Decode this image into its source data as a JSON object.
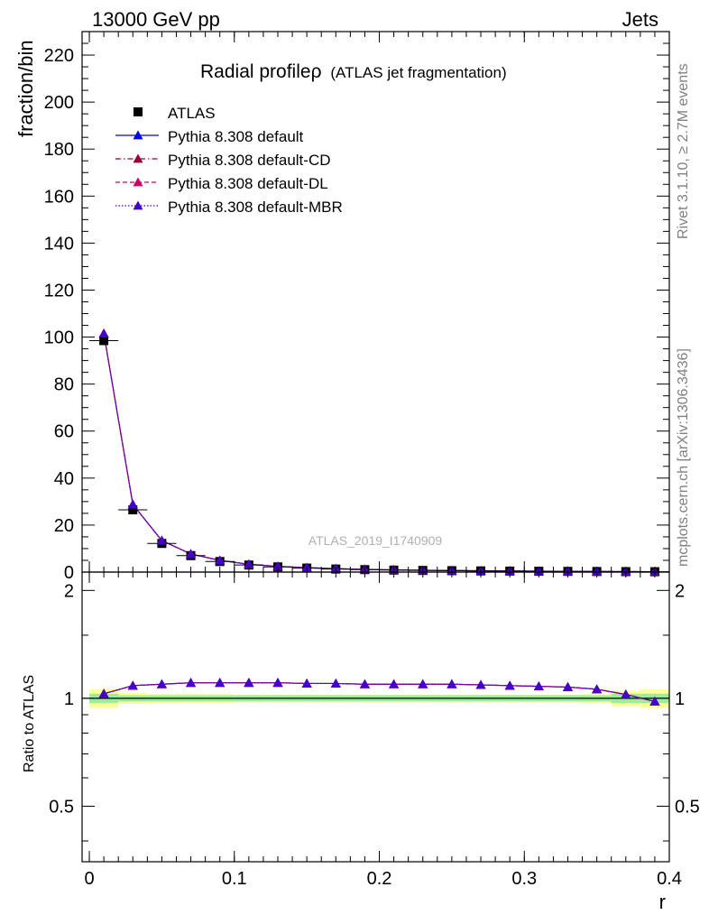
{
  "header": {
    "left": "13000 GeV pp",
    "right": "Jets"
  },
  "side_text": {
    "rivet": "Rivet 3.1.10, ≥ 2.7M events",
    "mcplots": "mcplots.cern.ch [arXiv:1306.3436]"
  },
  "watermark": "ATLAS_2019_I1740909",
  "chart_data": {
    "type": "line",
    "title": "Radial profileρ",
    "subtitle": "(ATLAS jet fragmentation)",
    "xlabel": "r",
    "ylabel": "fraction/bin",
    "ratio_ylabel": "Ratio to ATLAS",
    "xlim": [
      -0.005,
      0.4
    ],
    "ylim": [
      0,
      230
    ],
    "ratio_ylim": [
      0.35,
      2.25
    ],
    "x_ticks": [
      "0",
      "0.1",
      "0.2",
      "0.3",
      "0.4"
    ],
    "y_ticks": [
      "0",
      "20",
      "40",
      "60",
      "80",
      "100",
      "120",
      "140",
      "160",
      "180",
      "200",
      "220"
    ],
    "ratio_ticks": [
      "0.5",
      "1",
      "2"
    ],
    "x": [
      0.01,
      0.03,
      0.05,
      0.07,
      0.09,
      0.11,
      0.13,
      0.15,
      0.17,
      0.19,
      0.21,
      0.23,
      0.25,
      0.27,
      0.29,
      0.31,
      0.33,
      0.35,
      0.37,
      0.39
    ],
    "data": {
      "name": "ATLAS",
      "values": [
        98.5,
        26.5,
        12.2,
        7.0,
        4.5,
        3.0,
        2.2,
        1.7,
        1.3,
        1.05,
        0.85,
        0.7,
        0.6,
        0.5,
        0.42,
        0.35,
        0.3,
        0.25,
        0.2,
        0.16
      ],
      "band_inner": [
        0.03,
        0.02,
        0.02,
        0.02,
        0.02,
        0.02,
        0.02,
        0.02,
        0.02,
        0.02,
        0.02,
        0.02,
        0.02,
        0.02,
        0.02,
        0.02,
        0.02,
        0.02,
        0.03,
        0.03
      ],
      "band_outer": [
        0.06,
        0.035,
        0.03,
        0.03,
        0.03,
        0.025,
        0.025,
        0.025,
        0.025,
        0.025,
        0.025,
        0.025,
        0.025,
        0.025,
        0.025,
        0.025,
        0.025,
        0.03,
        0.05,
        0.06
      ]
    },
    "series": [
      {
        "name": "Pythia 8.308 default",
        "color": "#0000ff",
        "dash": "solid",
        "values": [
          101.5,
          28.8,
          13.4,
          7.7,
          5.0,
          3.3,
          2.42,
          1.87,
          1.43,
          1.15,
          0.93,
          0.77,
          0.66,
          0.55,
          0.46,
          0.38,
          0.32,
          0.26,
          0.205,
          0.157
        ],
        "ratio": [
          1.03,
          1.085,
          1.095,
          1.105,
          1.105,
          1.105,
          1.105,
          1.1,
          1.1,
          1.095,
          1.095,
          1.095,
          1.095,
          1.09,
          1.085,
          1.08,
          1.075,
          1.06,
          1.025,
          0.98
        ]
      },
      {
        "name": "Pythia 8.308 default-CD",
        "color": "#990033",
        "dash": "dashdot",
        "values": [
          101.5,
          28.8,
          13.4,
          7.7,
          5.0,
          3.3,
          2.42,
          1.87,
          1.43,
          1.15,
          0.93,
          0.77,
          0.66,
          0.55,
          0.46,
          0.38,
          0.32,
          0.26,
          0.205,
          0.157
        ],
        "ratio": [
          1.03,
          1.085,
          1.095,
          1.105,
          1.105,
          1.105,
          1.105,
          1.1,
          1.1,
          1.095,
          1.095,
          1.095,
          1.095,
          1.09,
          1.085,
          1.08,
          1.075,
          1.06,
          1.025,
          0.98
        ]
      },
      {
        "name": "Pythia 8.308 default-DL",
        "color": "#cc0066",
        "dash": "dashed",
        "values": [
          101.5,
          28.8,
          13.4,
          7.7,
          5.0,
          3.3,
          2.42,
          1.87,
          1.43,
          1.15,
          0.93,
          0.77,
          0.66,
          0.55,
          0.46,
          0.38,
          0.32,
          0.26,
          0.205,
          0.157
        ],
        "ratio": [
          1.03,
          1.085,
          1.095,
          1.105,
          1.105,
          1.105,
          1.105,
          1.1,
          1.1,
          1.095,
          1.095,
          1.095,
          1.095,
          1.09,
          1.085,
          1.08,
          1.075,
          1.06,
          1.025,
          0.98
        ]
      },
      {
        "name": "Pythia 8.308 default-MBR",
        "color": "#4400cc",
        "dash": "dotted",
        "values": [
          101.5,
          28.8,
          13.4,
          7.7,
          5.0,
          3.3,
          2.42,
          1.87,
          1.43,
          1.15,
          0.93,
          0.77,
          0.66,
          0.55,
          0.46,
          0.38,
          0.32,
          0.26,
          0.205,
          0.157
        ],
        "ratio": [
          1.03,
          1.085,
          1.095,
          1.105,
          1.105,
          1.105,
          1.105,
          1.1,
          1.1,
          1.095,
          1.095,
          1.095,
          1.095,
          1.09,
          1.085,
          1.08,
          1.075,
          1.06,
          1.025,
          0.98
        ]
      }
    ],
    "ratio_scale": "log",
    "legend_position": "top-left",
    "grid": false
  }
}
